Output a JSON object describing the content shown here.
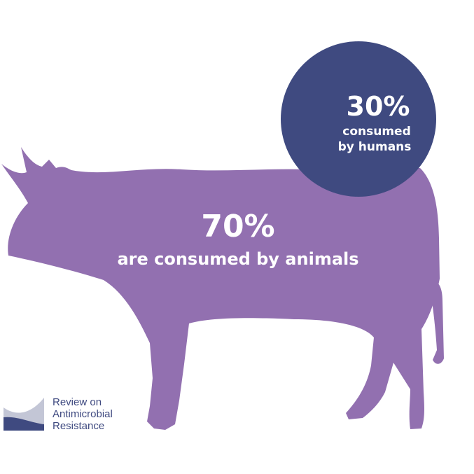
{
  "animals": {
    "percent": "70%",
    "label": "are consumed by animals",
    "share": 70
  },
  "humans": {
    "percent": "30%",
    "label_line1": "consumed",
    "label_line2": "by humans",
    "share": 30
  },
  "logo": {
    "line1": "Review on",
    "line2": "Antimicrobial",
    "line3": "Resistance"
  },
  "colors": {
    "cow": "#9270b0",
    "circle": "#3f4a80",
    "logo_dark": "#3f4a80",
    "logo_light": "#c3c6d6"
  }
}
